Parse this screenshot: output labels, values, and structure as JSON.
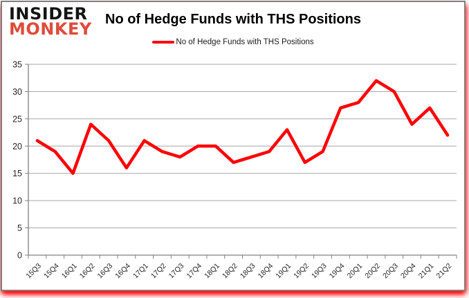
{
  "logo": {
    "line1": "INSIDER",
    "line2": "MONKEY"
  },
  "header": {
    "title": "No of Hedge Funds with THS Positions"
  },
  "legend": {
    "label": "No of Hedge Funds with THS Positions"
  },
  "colors": {
    "series_line": "#ff0000",
    "gridline": "#a6a6a6",
    "axis": "#808080",
    "tick": "#808080",
    "axis_text": "#262626",
    "logo_black": "#141414",
    "logo_red": "#df4b3b",
    "border_glow": "#ff0000"
  },
  "chart_data": {
    "type": "line",
    "title": "No of Hedge Funds with THS Positions",
    "xlabel": "",
    "ylabel": "",
    "categories": [
      "15Q3",
      "15Q4",
      "16Q1",
      "16Q2",
      "16Q3",
      "16Q4",
      "17Q1",
      "17Q2",
      "17Q3",
      "17Q4",
      "18Q1",
      "18Q2",
      "18Q3",
      "18Q4",
      "19Q1",
      "19Q2",
      "19Q3",
      "19Q4",
      "20Q1",
      "20Q2",
      "20Q3",
      "20Q4",
      "21Q1",
      "21Q2"
    ],
    "series": [
      {
        "name": "No of Hedge Funds with THS Positions",
        "color": "#ff0000",
        "values": [
          21,
          19,
          15,
          24,
          21,
          16,
          21,
          19,
          18,
          20,
          20,
          17,
          18,
          19,
          23,
          17,
          19,
          27,
          28,
          32,
          30,
          24,
          27,
          22
        ]
      }
    ],
    "ylim": [
      0,
      35
    ],
    "ytick_step": 5,
    "yticks": [
      0,
      5,
      10,
      15,
      20,
      25,
      30,
      35
    ],
    "grid": true,
    "legend_position": "top"
  }
}
